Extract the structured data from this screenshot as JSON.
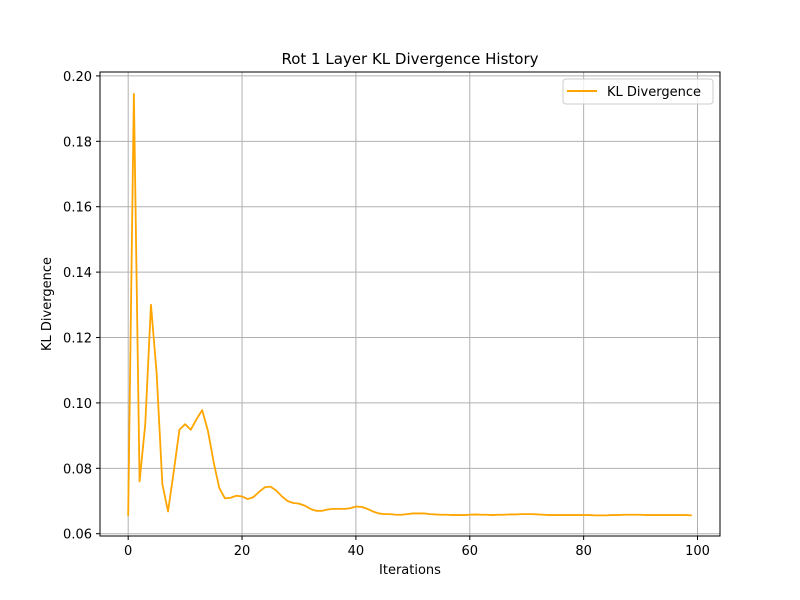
{
  "chart_data": {
    "type": "line",
    "title": "Rot 1 Layer KL Divergence History",
    "xlabel": "Iterations",
    "ylabel": "KL Divergence",
    "xlim": [
      -4.95,
      103.95
    ],
    "ylim": [
      0.0593,
      0.2012
    ],
    "xticks": [
      0,
      20,
      40,
      60,
      80,
      100
    ],
    "yticks": [
      0.06,
      0.08,
      0.1,
      0.12,
      0.14,
      0.16,
      0.18,
      0.2
    ],
    "xtick_labels": [
      "0",
      "20",
      "40",
      "60",
      "80",
      "100"
    ],
    "ytick_labels": [
      "0.06",
      "0.08",
      "0.10",
      "0.12",
      "0.14",
      "0.16",
      "0.18",
      "0.20"
    ],
    "grid": true,
    "legend_position": "top-right",
    "series": [
      {
        "name": "KL Divergence",
        "color": "#ffa500",
        "x": [
          0,
          1,
          2,
          3,
          4,
          5,
          6,
          7,
          8,
          9,
          10,
          11,
          12,
          13,
          14,
          15,
          16,
          17,
          18,
          19,
          20,
          21,
          22,
          23,
          24,
          25,
          26,
          27,
          28,
          29,
          30,
          31,
          32,
          33,
          34,
          35,
          36,
          37,
          38,
          39,
          40,
          41,
          42,
          43,
          44,
          45,
          46,
          47,
          48,
          49,
          50,
          51,
          52,
          53,
          54,
          55,
          56,
          57,
          58,
          59,
          60,
          61,
          62,
          63,
          64,
          65,
          66,
          67,
          68,
          69,
          70,
          71,
          72,
          73,
          74,
          75,
          76,
          77,
          78,
          79,
          80,
          81,
          82,
          83,
          84,
          85,
          86,
          87,
          88,
          89,
          90,
          91,
          92,
          93,
          94,
          95,
          96,
          97,
          98,
          99
        ],
        "y": [
          0.0655,
          0.1945,
          0.076,
          0.0935,
          0.13,
          0.109,
          0.0752,
          0.0668,
          0.079,
          0.0918,
          0.0935,
          0.0918,
          0.095,
          0.0978,
          0.0915,
          0.082,
          0.074,
          0.0708,
          0.071,
          0.0716,
          0.0714,
          0.0706,
          0.0712,
          0.0728,
          0.0742,
          0.0744,
          0.0732,
          0.0714,
          0.07,
          0.0694,
          0.0692,
          0.0686,
          0.0676,
          0.067,
          0.067,
          0.0674,
          0.0676,
          0.0676,
          0.0676,
          0.0678,
          0.0683,
          0.0682,
          0.0676,
          0.0668,
          0.0662,
          0.066,
          0.066,
          0.0658,
          0.0658,
          0.066,
          0.0662,
          0.0662,
          0.0662,
          0.066,
          0.0659,
          0.0658,
          0.0658,
          0.0657,
          0.0657,
          0.0657,
          0.0658,
          0.0659,
          0.0658,
          0.0658,
          0.0657,
          0.0658,
          0.0658,
          0.0659,
          0.0659,
          0.066,
          0.066,
          0.066,
          0.0659,
          0.0658,
          0.0657,
          0.0657,
          0.0657,
          0.0657,
          0.0657,
          0.0657,
          0.0657,
          0.0657,
          0.0656,
          0.0656,
          0.0656,
          0.0657,
          0.0657,
          0.0658,
          0.0658,
          0.0658,
          0.0658,
          0.0657,
          0.0657,
          0.0657,
          0.0657,
          0.0657,
          0.0657,
          0.0657,
          0.0657,
          0.0656
        ]
      }
    ]
  }
}
